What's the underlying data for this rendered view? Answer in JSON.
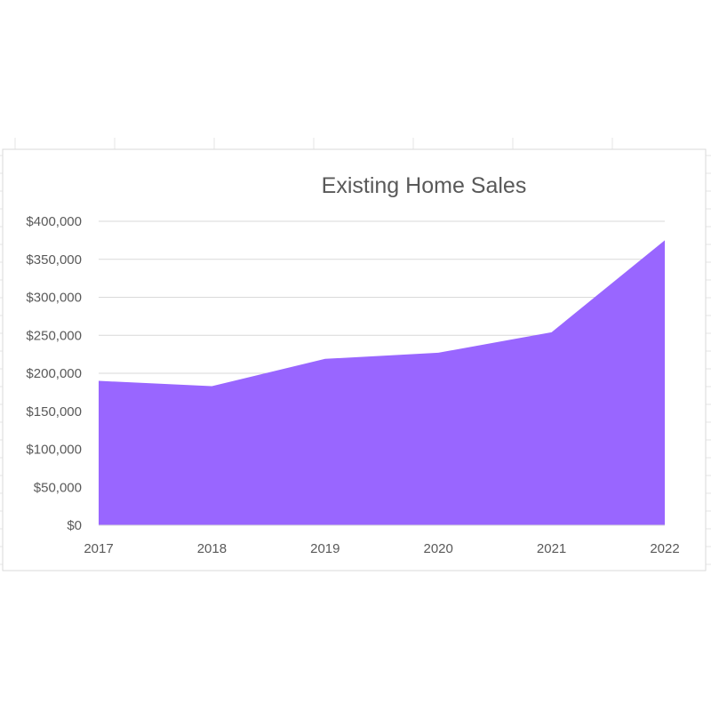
{
  "chart_data": {
    "type": "area",
    "title": "Existing Home Sales",
    "xlabel": "",
    "ylabel": "",
    "categories": [
      "2017",
      "2018",
      "2019",
      "2020",
      "2021",
      "2022"
    ],
    "series": [
      {
        "values": [
          190000,
          183000,
          219000,
          227000,
          254000,
          375000
        ]
      }
    ],
    "ylim": [
      0,
      400000
    ],
    "y_ticks": [
      0,
      50000,
      100000,
      150000,
      200000,
      250000,
      300000,
      350000,
      400000
    ],
    "y_tick_labels": [
      "$0",
      "$50,000",
      "$100,000",
      "$150,000",
      "$200,000",
      "$250,000",
      "$300,000",
      "$350,000",
      "$400,000"
    ],
    "grid": true,
    "legend": "none",
    "colors": {
      "fill": "#9966ff",
      "grid": "#d9d9d9",
      "text": "#595959",
      "frame": "#d9d9d9"
    }
  }
}
